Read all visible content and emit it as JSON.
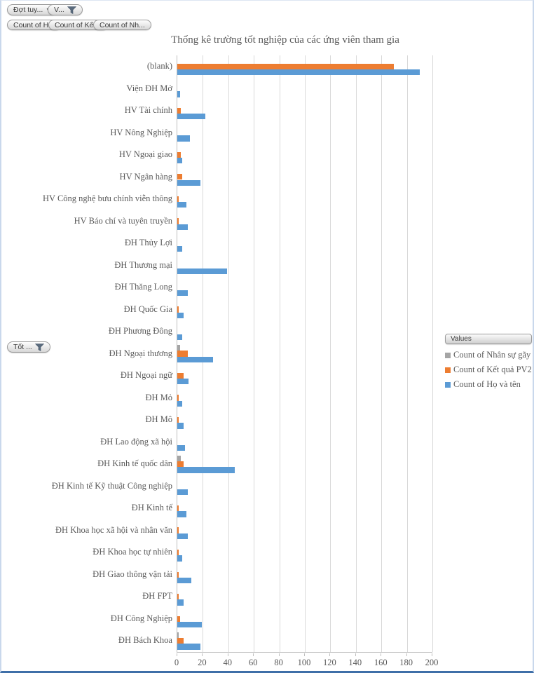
{
  "filters": {
    "report_filters": [
      {
        "label": "Đợt tuy...",
        "icon": "dropdown"
      },
      {
        "label": "V...",
        "icon": "funnel"
      }
    ],
    "value_field_buttons": [
      "Count of H...",
      "Count of Kết...",
      "Count of Nh..."
    ],
    "axis_field_button": {
      "label": "Tốt ...",
      "icon": "funnel"
    },
    "legend_field_button": "Values"
  },
  "chart_data": {
    "type": "bar",
    "orientation": "horizontal",
    "title": "Thống kê trường tốt nghiệp của các ứng viên tham gia",
    "xlabel": "",
    "ylabel": "",
    "xlim": [
      0,
      200
    ],
    "xticks": [
      0,
      20,
      40,
      60,
      80,
      100,
      120,
      140,
      160,
      180,
      200
    ],
    "grid": true,
    "legend_position": "right",
    "categories": [
      "(blank)",
      "Viện ĐH Mở",
      "HV Tài chính",
      "HV Nông Nghiệp",
      "HV Ngoại giao",
      "HV Ngân hàng",
      "HV Công nghệ bưu chính viễn thông",
      "HV Báo chí và tuyên truyền",
      "ĐH Thủy Lợi",
      "ĐH Thương mại",
      "ĐH Thăng Long",
      "ĐH Quốc Gia",
      "ĐH Phương Đông",
      "ĐH Ngoại thương",
      "ĐH Ngoại ngữ",
      "ĐH Mỏ",
      "ĐH Mô",
      "ĐH Lao động xã hội",
      "ĐH Kinh tế quốc dân",
      "ĐH Kinh tế Kỹ thuật Công nghiệp",
      "ĐH Kinh tế",
      "ĐH Khoa học xã hội và nhân văn",
      "ĐH Khoa học tự nhiên",
      "ĐH Giao thông vận tải",
      "ĐH FPT",
      "ĐH Công Nghiệp",
      "ĐH Bách Khoa"
    ],
    "series": [
      {
        "name": "Count of Nhân sự gãy",
        "color": "#a5a5a5",
        "values": [
          0,
          0,
          0,
          0,
          0,
          0,
          0,
          0,
          0,
          0,
          0,
          0,
          0,
          2,
          0,
          0,
          0,
          0,
          3,
          0,
          0,
          0,
          0,
          0,
          0,
          0,
          1
        ]
      },
      {
        "name": "Count of Kết quả PV2",
        "color": "#ed7d31",
        "values": [
          170,
          0,
          3,
          0,
          3,
          4,
          1,
          1,
          0,
          0,
          0,
          1,
          0,
          8,
          5,
          1,
          1,
          0,
          5,
          0,
          1,
          1,
          1,
          1,
          1,
          2,
          5
        ]
      },
      {
        "name": "Count of Họ và tên",
        "color": "#5b9bd5",
        "values": [
          190,
          2,
          22,
          10,
          4,
          18,
          7,
          8,
          4,
          39,
          8,
          5,
          4,
          28,
          9,
          4,
          5,
          6,
          45,
          8,
          7,
          8,
          4,
          11,
          5,
          19,
          18
        ]
      }
    ]
  },
  "colors": {
    "axis_line": "#bfbfbf",
    "gridline": "#d9d9d9",
    "text": "#595959",
    "window_border_bottom": "#3f6fa8"
  }
}
